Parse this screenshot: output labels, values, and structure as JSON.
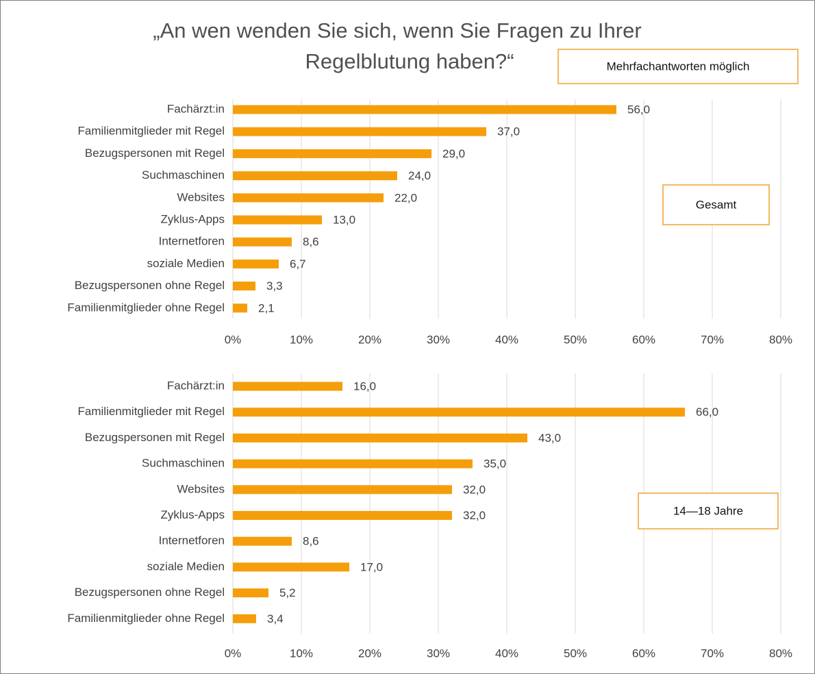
{
  "title": [
    "„An wen wenden Sie sich, wenn Sie Fragen zu Ihrer",
    "Regelblutung haben?“"
  ],
  "annotation": "Mehrfachantworten möglich",
  "chart_data": [
    {
      "type": "bar",
      "orientation": "horizontal",
      "label": "Gesamt",
      "color": "#f59e0b",
      "grid": true,
      "categories": [
        "Fachärzt:in",
        "Familienmitglieder mit Regel",
        "Bezugspersonen mit Regel",
        "Suchmaschinen",
        "Websites",
        "Zyklus-Apps",
        "Internetforen",
        "soziale Medien",
        "Bezugspersonen ohne Regel",
        "Familienmitglieder ohne Regel"
      ],
      "values": [
        56,
        37,
        29,
        24,
        22,
        13,
        8.6,
        6.7,
        3.3,
        2.1
      ],
      "value_labels": [
        "56,0",
        "37,0",
        "29,0",
        "24,0",
        "22,0",
        "13,0",
        "8,6",
        "6,7",
        "3,3",
        "2,1"
      ],
      "xlim": [
        0,
        80
      ],
      "xticks": [
        {
          "value": 0,
          "label": "0%"
        },
        {
          "value": 10,
          "label": "10%"
        },
        {
          "value": 20,
          "label": "20%"
        },
        {
          "value": 30,
          "label": "30%"
        },
        {
          "value": 40,
          "label": "40%"
        },
        {
          "value": 50,
          "label": "50%"
        },
        {
          "value": 60,
          "label": "60%"
        },
        {
          "value": 70,
          "label": "70%"
        },
        {
          "value": 80,
          "label": "80%"
        }
      ]
    },
    {
      "type": "bar",
      "orientation": "horizontal",
      "label": "14—18 Jahre",
      "color": "#f59e0b",
      "grid": true,
      "categories": [
        "Fachärzt:in",
        "Familienmitglieder mit Regel",
        "Bezugspersonen mit Regel",
        "Suchmaschinen",
        "Websites",
        "Zyklus-Apps",
        "Internetforen",
        "soziale Medien",
        "Bezugspersonen ohne Regel",
        "Familienmitglieder ohne Regel"
      ],
      "values": [
        16,
        66,
        43,
        35,
        32,
        32,
        8.6,
        17,
        5.2,
        3.4
      ],
      "value_labels": [
        "16,0",
        "66,0",
        "43,0",
        "35,0",
        "32,0",
        "32,0",
        "8,6",
        "17,0",
        "5,2",
        "3,4"
      ],
      "xlim": [
        0,
        80
      ],
      "xticks": [
        {
          "value": 0,
          "label": "0%"
        },
        {
          "value": 10,
          "label": "10%"
        },
        {
          "value": 20,
          "label": "20%"
        },
        {
          "value": 30,
          "label": "30%"
        },
        {
          "value": 40,
          "label": "40%"
        },
        {
          "value": 50,
          "label": "50%"
        },
        {
          "value": 60,
          "label": "60%"
        },
        {
          "value": 70,
          "label": "70%"
        },
        {
          "value": 80,
          "label": "80%"
        }
      ]
    }
  ]
}
